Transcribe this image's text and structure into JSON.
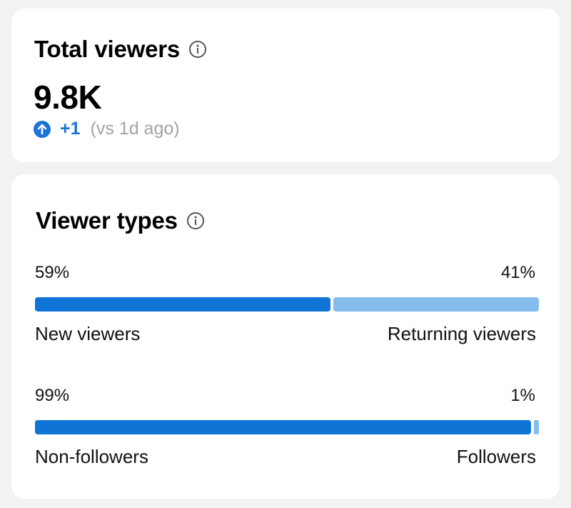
{
  "total_viewers": {
    "title": "Total viewers",
    "value": "9.8K",
    "change": "+1",
    "comparison": "(vs 1d ago)",
    "icons": {
      "info": "info-icon",
      "trend": "arrow-up-circle-icon"
    }
  },
  "viewer_types": {
    "title": "Viewer types",
    "icons": {
      "info": "info-icon"
    },
    "breakdowns": [
      {
        "left_percent": "59%",
        "right_percent": "41%",
        "left_label": "New viewers",
        "right_label": "Returning viewers",
        "left_share": 59,
        "right_share": 41,
        "left_color": "#0f74d6",
        "right_color": "#86bceb"
      },
      {
        "left_percent": "99%",
        "right_percent": "1%",
        "left_label": "Non-followers",
        "right_label": "Followers",
        "left_share": 99,
        "right_share": 1,
        "left_color": "#0f74d6",
        "right_color": "#86bceb"
      }
    ]
  },
  "colors": {
    "accent": "#1a73d9",
    "muted_text": "#a3a3a3",
    "background": "#f2f2f2",
    "card": "#ffffff"
  }
}
